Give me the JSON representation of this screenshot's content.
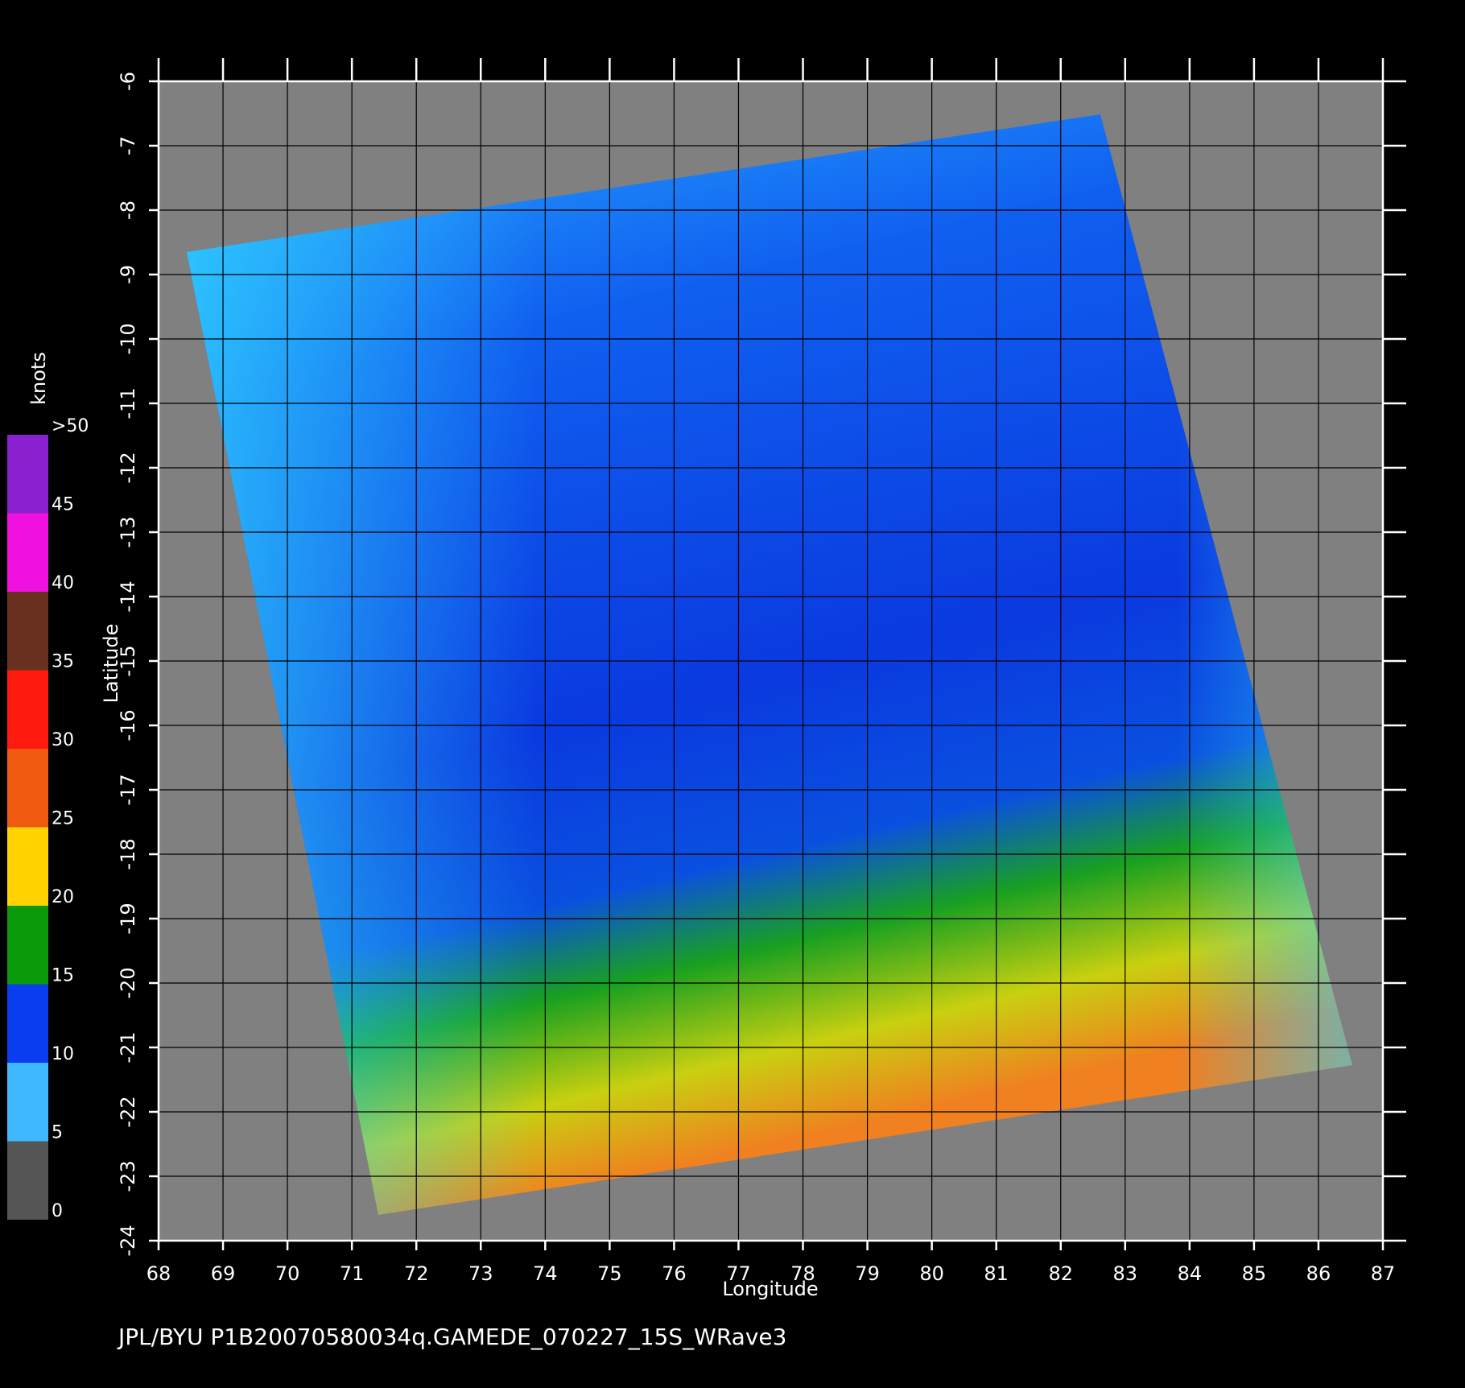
{
  "chart_data": {
    "type": "map",
    "footer": "JPL/BYU  P1B20070580034q.GAMEDE_070227_15S_WRave3",
    "xlabel": "Longitude",
    "ylabel": "Latitude",
    "xlim": [
      68,
      87
    ],
    "ylim": [
      -24,
      -6
    ],
    "xticks": [
      68,
      69,
      70,
      71,
      72,
      73,
      74,
      75,
      76,
      77,
      78,
      79,
      80,
      81,
      82,
      83,
      84,
      85,
      86,
      87
    ],
    "yticks": [
      -24,
      -23,
      -22,
      -21,
      -20,
      -19,
      -18,
      -17,
      -16,
      -15,
      -14,
      -13,
      -12,
      -11,
      -10,
      -9,
      -8,
      -7,
      -6
    ],
    "grid": true,
    "colorbar": {
      "label": "knots",
      "ticks": [
        0,
        5,
        10,
        15,
        20,
        25,
        30,
        35,
        40,
        45,
        {
          "value": 50,
          "label": ">50"
        }
      ],
      "colors": [
        "#555555",
        "#3fb8ff",
        "#0a3cf0",
        "#0a9a0a",
        "#ffd200",
        "#f05a10",
        "#ff1a10",
        "#6a3020",
        "#f010e0",
        "#8a20d0"
      ]
    }
  }
}
